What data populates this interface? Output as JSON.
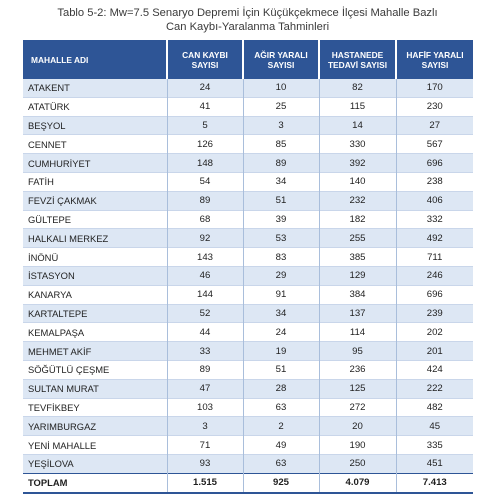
{
  "title": {
    "line1": "Tablo 5-2: Mw=7.5 Senaryo Depremi İçin Küçükçekmece İlçesi Mahalle Bazlı",
    "line2": "Can Kaybı-Yaralanma Tahminleri"
  },
  "table": {
    "headers": [
      [
        "MAHALLE ADI",
        ""
      ],
      [
        "CAN KAYBI",
        "SAYISI"
      ],
      [
        "AĞIR YARALI",
        "SAYISI"
      ],
      [
        "HASTANEDE",
        "TEDAVİ SAYISI"
      ],
      [
        "HAFİF YARALI",
        "SAYISI"
      ]
    ],
    "rows": [
      [
        "ATAKENT",
        "24",
        "10",
        "82",
        "170"
      ],
      [
        "ATATÜRK",
        "41",
        "25",
        "115",
        "230"
      ],
      [
        "BEŞYOL",
        "5",
        "3",
        "14",
        "27"
      ],
      [
        "CENNET",
        "126",
        "85",
        "330",
        "567"
      ],
      [
        "CUMHURİYET",
        "148",
        "89",
        "392",
        "696"
      ],
      [
        "FATİH",
        "54",
        "34",
        "140",
        "238"
      ],
      [
        "FEVZİ ÇAKMAK",
        "89",
        "51",
        "232",
        "406"
      ],
      [
        "GÜLTEPE",
        "68",
        "39",
        "182",
        "332"
      ],
      [
        "HALKALI MERKEZ",
        "92",
        "53",
        "255",
        "492"
      ],
      [
        "İNÖNÜ",
        "143",
        "83",
        "385",
        "711"
      ],
      [
        "İSTASYON",
        "46",
        "29",
        "129",
        "246"
      ],
      [
        "KANARYA",
        "144",
        "91",
        "384",
        "696"
      ],
      [
        "KARTALTEPE",
        "52",
        "34",
        "137",
        "239"
      ],
      [
        "KEMALPAŞA",
        "44",
        "24",
        "114",
        "202"
      ],
      [
        "MEHMET AKİF",
        "33",
        "19",
        "95",
        "201"
      ],
      [
        "SÖĞÜTLÜ ÇEŞME",
        "89",
        "51",
        "236",
        "424"
      ],
      [
        "SULTAN MURAT",
        "47",
        "28",
        "125",
        "222"
      ],
      [
        "TEVFİKBEY",
        "103",
        "63",
        "272",
        "482"
      ],
      [
        "YARIMBURGAZ",
        "3",
        "2",
        "20",
        "45"
      ],
      [
        "YENİ MAHALLE",
        "71",
        "49",
        "190",
        "335"
      ],
      [
        "YEŞİLOVA",
        "93",
        "63",
        "250",
        "451"
      ]
    ],
    "total": [
      "TOPLAM",
      "1.515",
      "925",
      "4.079",
      "7.413"
    ]
  }
}
